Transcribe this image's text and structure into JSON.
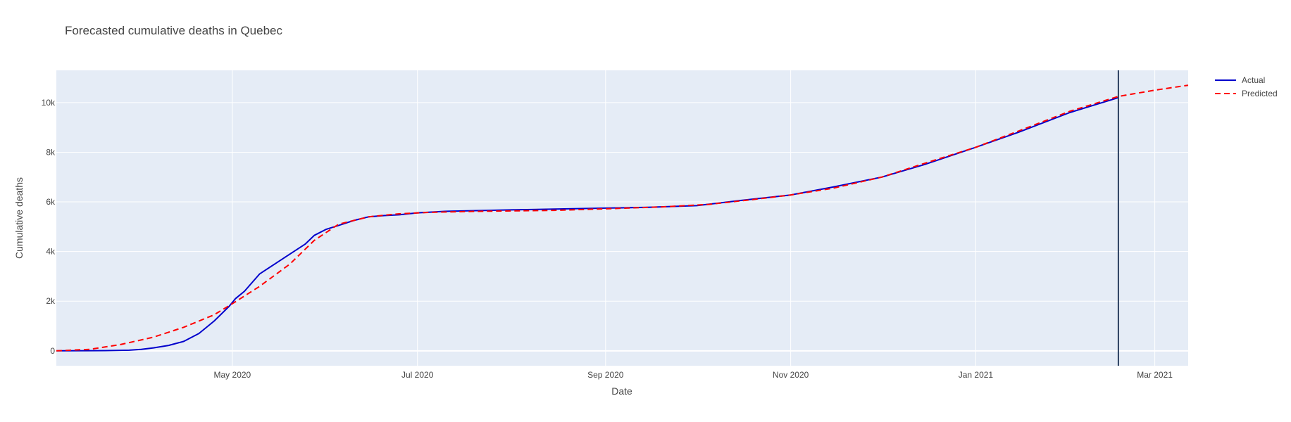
{
  "chart_data": {
    "type": "line",
    "title": "Forecasted cumulative deaths in Quebec",
    "xlabel": "Date",
    "ylabel": "Cumulative deaths",
    "x_range": [
      "2020-03-04",
      "2021-03-12"
    ],
    "ylim": [
      -600,
      11300
    ],
    "x_ticks": [
      {
        "date": "2020-05-01",
        "label": "May 2020"
      },
      {
        "date": "2020-07-01",
        "label": "Jul 2020"
      },
      {
        "date": "2020-09-01",
        "label": "Sep 2020"
      },
      {
        "date": "2020-11-01",
        "label": "Nov 2020"
      },
      {
        "date": "2021-01-01",
        "label": "Jan 2021"
      },
      {
        "date": "2021-03-01",
        "label": "Mar 2021"
      }
    ],
    "y_ticks": [
      {
        "value": 0,
        "label": "0"
      },
      {
        "value": 2000,
        "label": "2k"
      },
      {
        "value": 4000,
        "label": "4k"
      },
      {
        "value": 6000,
        "label": "6k"
      },
      {
        "value": 8000,
        "label": "8k"
      },
      {
        "value": 10000,
        "label": "10k"
      }
    ],
    "grid": true,
    "legend_position": "top-right",
    "vertical_line_date": "2021-02-17",
    "series": [
      {
        "name": "Actual",
        "color": "#0000cc",
        "dash": "solid",
        "points": [
          [
            "2020-03-04",
            0
          ],
          [
            "2020-03-20",
            10
          ],
          [
            "2020-03-28",
            25
          ],
          [
            "2020-04-01",
            60
          ],
          [
            "2020-04-05",
            120
          ],
          [
            "2020-04-10",
            220
          ],
          [
            "2020-04-15",
            380
          ],
          [
            "2020-04-20",
            700
          ],
          [
            "2020-04-25",
            1200
          ],
          [
            "2020-04-30",
            1800
          ],
          [
            "2020-05-02",
            2100
          ],
          [
            "2020-05-05",
            2400
          ],
          [
            "2020-05-10",
            3100
          ],
          [
            "2020-05-15",
            3500
          ],
          [
            "2020-05-20",
            3900
          ],
          [
            "2020-05-25",
            4300
          ],
          [
            "2020-05-28",
            4650
          ],
          [
            "2020-06-01",
            4900
          ],
          [
            "2020-06-05",
            5050
          ],
          [
            "2020-06-10",
            5250
          ],
          [
            "2020-06-15",
            5400
          ],
          [
            "2020-06-20",
            5450
          ],
          [
            "2020-06-25",
            5480
          ],
          [
            "2020-07-01",
            5560
          ],
          [
            "2020-07-10",
            5620
          ],
          [
            "2020-08-01",
            5680
          ],
          [
            "2020-09-01",
            5750
          ],
          [
            "2020-09-15",
            5780
          ],
          [
            "2020-10-01",
            5850
          ],
          [
            "2020-10-15",
            6050
          ],
          [
            "2020-11-01",
            6280
          ],
          [
            "2020-11-15",
            6600
          ],
          [
            "2020-12-01",
            7000
          ],
          [
            "2020-12-15",
            7500
          ],
          [
            "2021-01-01",
            8200
          ],
          [
            "2021-01-15",
            8800
          ],
          [
            "2021-02-01",
            9600
          ],
          [
            "2021-02-17",
            10200
          ]
        ]
      },
      {
        "name": "Predicted",
        "color": "#ff0000",
        "dash": "dash",
        "points": [
          [
            "2020-03-04",
            0
          ],
          [
            "2020-03-15",
            60
          ],
          [
            "2020-03-25",
            250
          ],
          [
            "2020-04-05",
            550
          ],
          [
            "2020-04-15",
            950
          ],
          [
            "2020-04-25",
            1450
          ],
          [
            "2020-05-01",
            1900
          ],
          [
            "2020-05-10",
            2600
          ],
          [
            "2020-05-20",
            3500
          ],
          [
            "2020-05-28",
            4450
          ],
          [
            "2020-06-05",
            5100
          ],
          [
            "2020-06-15",
            5400
          ],
          [
            "2020-06-25",
            5520
          ],
          [
            "2020-07-05",
            5580
          ],
          [
            "2020-07-20",
            5620
          ],
          [
            "2020-08-15",
            5660
          ],
          [
            "2020-09-01",
            5720
          ],
          [
            "2020-09-20",
            5800
          ],
          [
            "2020-10-05",
            5900
          ],
          [
            "2020-10-20",
            6100
          ],
          [
            "2020-11-01",
            6280
          ],
          [
            "2020-11-15",
            6550
          ],
          [
            "2020-12-01",
            7000
          ],
          [
            "2020-12-15",
            7550
          ],
          [
            "2021-01-01",
            8200
          ],
          [
            "2021-01-15",
            8850
          ],
          [
            "2021-02-01",
            9650
          ],
          [
            "2021-02-17",
            10250
          ],
          [
            "2021-03-01",
            10500
          ],
          [
            "2021-03-12",
            10700
          ]
        ]
      }
    ]
  }
}
